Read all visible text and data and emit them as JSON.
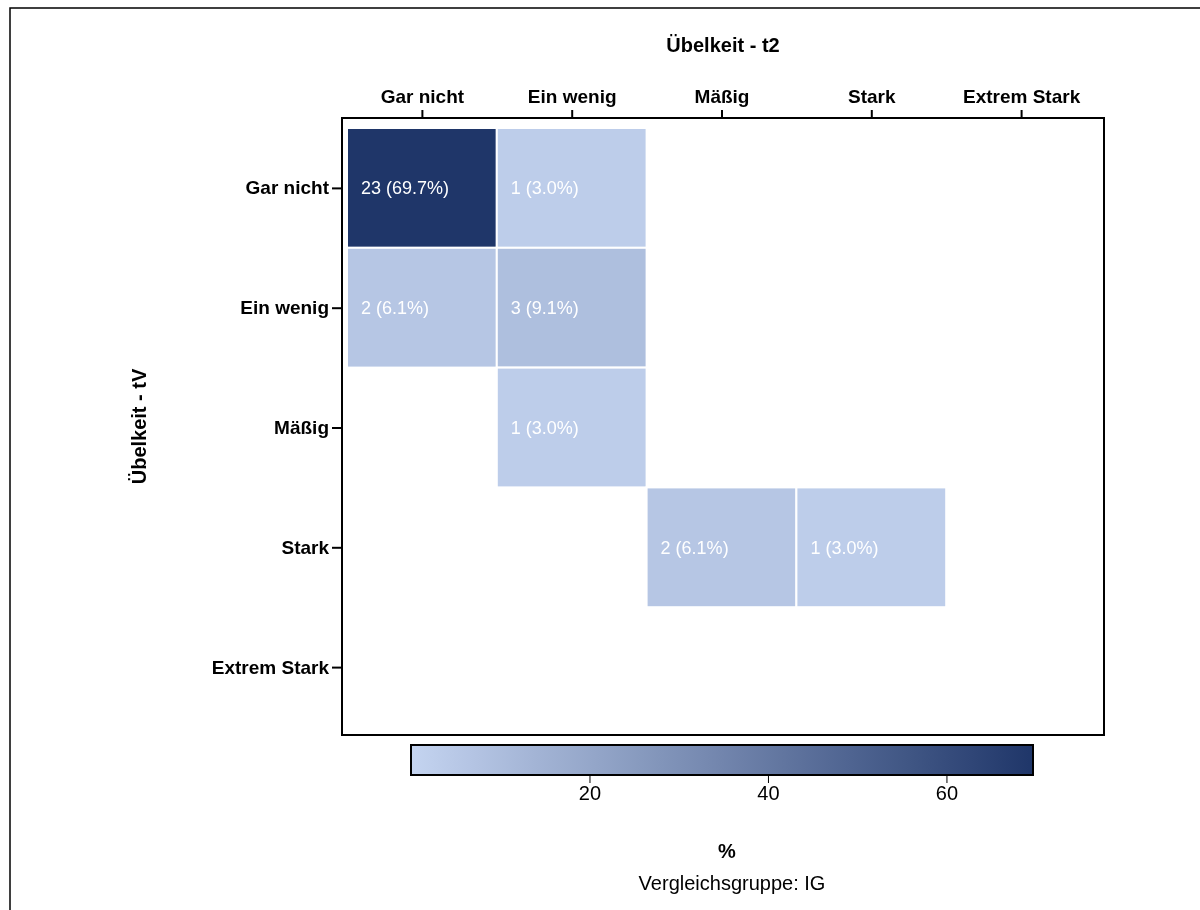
{
  "chart_data": {
    "type": "heatmap",
    "xlabel": "Übelkeit - t2",
    "ylabel": "Übelkeit - tV",
    "clabel": "%",
    "categories": [
      "Gar nicht",
      "Ein wenig",
      "Mäßig",
      "Stark",
      "Extrem Stark"
    ],
    "y_categories": [
      "Gar nicht",
      "Ein wenig",
      "Mäßig",
      "Stark",
      "Extrem Stark"
    ],
    "cells": [
      [
        69.7,
        3.0,
        null,
        null,
        null
      ],
      [
        6.1,
        9.1,
        null,
        null,
        null
      ],
      [
        null,
        3.0,
        null,
        null,
        null
      ],
      [
        null,
        null,
        6.1,
        3.0,
        null
      ],
      [
        null,
        null,
        null,
        null,
        null
      ]
    ],
    "cell_labels": [
      [
        "23 (69.7%)",
        "1 (3.0%)",
        null,
        null,
        null
      ],
      [
        "2 (6.1%)",
        "3 (9.1%)",
        null,
        null,
        null
      ],
      [
        null,
        "1 (3.0%)",
        null,
        null,
        null
      ],
      [
        null,
        null,
        "2 (6.1%)",
        "1 (3.0%)",
        null
      ],
      [
        null,
        null,
        null,
        null,
        null
      ]
    ],
    "clim": [
      0,
      69.7
    ],
    "cticks": [
      20,
      40,
      60
    ],
    "annotations": [
      "Vergleichsgruppe: IG"
    ]
  }
}
